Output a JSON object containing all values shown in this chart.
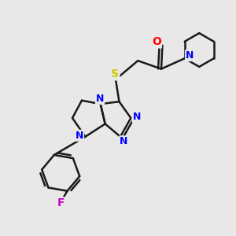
{
  "background_color": "#e8e8e8",
  "bond_color": "#1a1a1a",
  "bond_width": 1.8,
  "atom_colors": {
    "N": "#0000ff",
    "O": "#ff0000",
    "S": "#cccc00",
    "F": "#cc00cc",
    "C": "#1a1a1a"
  },
  "font_size_atom": 9,
  "figsize": [
    3.0,
    3.0
  ],
  "dpi": 100,
  "xlim": [
    0,
    10
  ],
  "ylim": [
    0,
    10
  ]
}
